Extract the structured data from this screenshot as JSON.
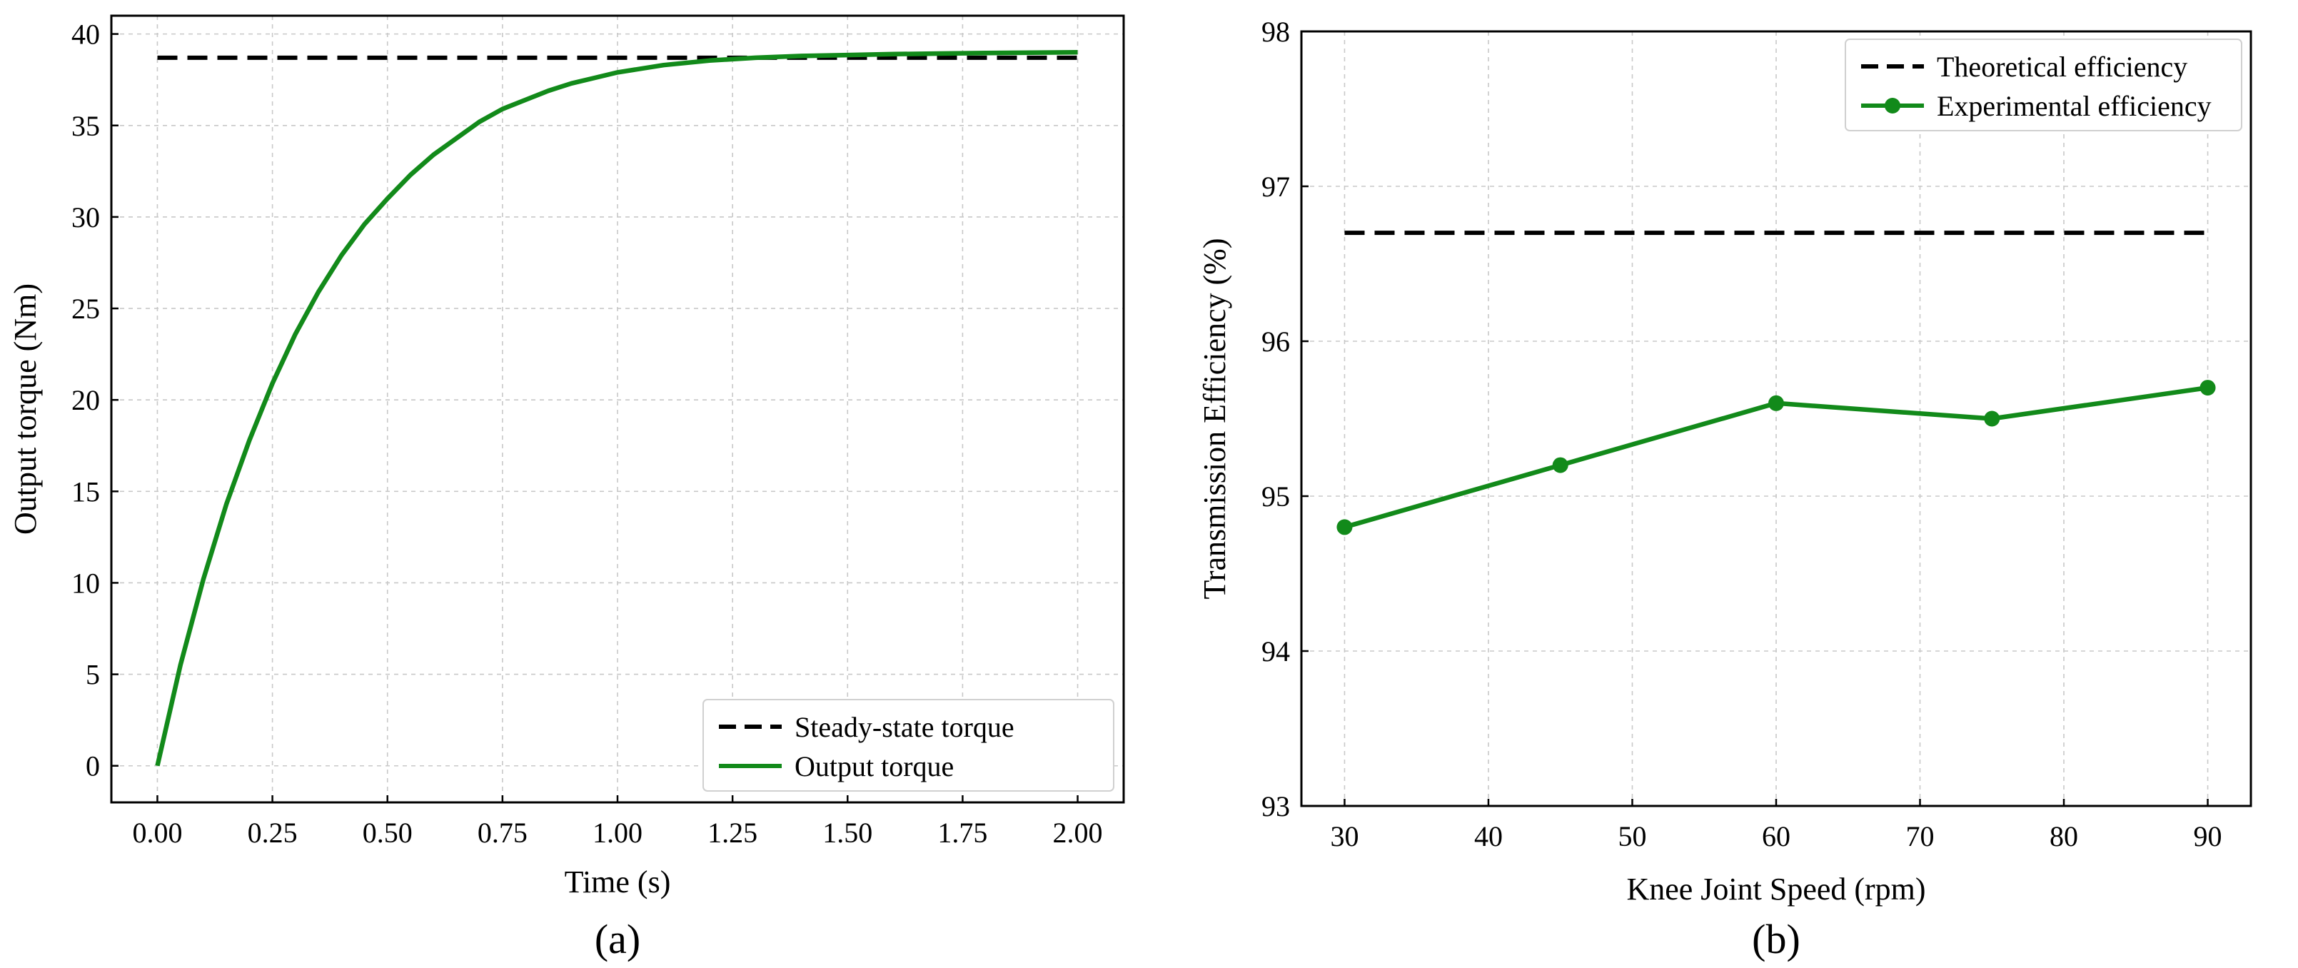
{
  "chart_data": [
    {
      "type": "line",
      "panel_label": "(a)",
      "title": "",
      "xlabel": "Time (s)",
      "ylabel": "Output  torque (Nm)",
      "xlim": [
        -0.1,
        2.1
      ],
      "ylim": [
        -2,
        41
      ],
      "xticks": [
        0,
        0.25,
        0.5,
        0.75,
        1,
        1.25,
        1.5,
        1.75,
        2
      ],
      "xtick_labels": [
        "0.00",
        "0.25",
        "0.50",
        "0.75",
        "1.00",
        "1.25",
        "1.50",
        "1.75",
        "2.00"
      ],
      "yticks": [
        0,
        5,
        10,
        15,
        20,
        25,
        30,
        35,
        40
      ],
      "ytick_labels": [
        "0",
        "5",
        "10",
        "15",
        "20",
        "25",
        "30",
        "35",
        "40"
      ],
      "grid": true,
      "legend_position": "bottom-right",
      "series": [
        {
          "name": "Steady-state torque",
          "style": "dashed",
          "color": "#000000",
          "x": [
            0,
            2
          ],
          "y": [
            38.7,
            38.7
          ]
        },
        {
          "name": "Output  torque",
          "style": "solid",
          "color": "#128a1a",
          "x": [
            0,
            0.05,
            0.1,
            0.15,
            0.2,
            0.25,
            0.3,
            0.35,
            0.4,
            0.45,
            0.5,
            0.55,
            0.6,
            0.65,
            0.7,
            0.75,
            0.8,
            0.85,
            0.9,
            0.95,
            1.0,
            1.1,
            1.2,
            1.3,
            1.4,
            1.5,
            1.6,
            1.7,
            1.8,
            1.9,
            2.0
          ],
          "y": [
            0,
            5.5,
            10.2,
            14.3,
            17.8,
            20.9,
            23.6,
            25.9,
            27.9,
            29.6,
            31.0,
            32.3,
            33.4,
            34.3,
            35.2,
            35.9,
            36.4,
            36.9,
            37.3,
            37.6,
            37.9,
            38.3,
            38.55,
            38.7,
            38.8,
            38.85,
            38.9,
            38.93,
            38.96,
            38.98,
            39.0
          ]
        }
      ]
    },
    {
      "type": "line",
      "panel_label": "(b)",
      "title": "",
      "xlabel": "Knee Joint Speed (rpm)",
      "ylabel": "Transmission Efficiency (%)",
      "xlim": [
        27,
        93
      ],
      "ylim": [
        93,
        98
      ],
      "xticks": [
        30,
        40,
        50,
        60,
        70,
        80,
        90
      ],
      "xtick_labels": [
        "30",
        "40",
        "50",
        "60",
        "70",
        "80",
        "90"
      ],
      "yticks": [
        93,
        94,
        95,
        96,
        97,
        98
      ],
      "ytick_labels": [
        "93",
        "94",
        "95",
        "96",
        "97",
        "98"
      ],
      "grid": true,
      "legend_position": "top-right",
      "series": [
        {
          "name": "Theoretical efficiency",
          "style": "dashed",
          "color": "#000000",
          "x": [
            30,
            90
          ],
          "y": [
            96.7,
            96.7
          ]
        },
        {
          "name": "Experimental  efficiency",
          "style": "solid-markers",
          "color": "#128a1a",
          "x": [
            30,
            45,
            60,
            75,
            90
          ],
          "y": [
            94.8,
            95.2,
            95.6,
            95.5,
            95.7
          ]
        }
      ]
    }
  ]
}
